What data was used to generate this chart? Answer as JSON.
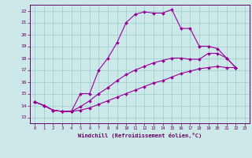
{
  "xlabel": "Windchill (Refroidissement éolien,°C)",
  "background_color": "#cce8e8",
  "grid_color": "#99cccc",
  "line_color": "#990099",
  "xlim": [
    -0.5,
    23.5
  ],
  "ylim": [
    12.5,
    22.5
  ],
  "xticks": [
    0,
    1,
    2,
    3,
    4,
    5,
    6,
    7,
    8,
    9,
    10,
    11,
    12,
    13,
    14,
    15,
    16,
    17,
    18,
    19,
    20,
    21,
    22,
    23
  ],
  "yticks": [
    13,
    14,
    15,
    16,
    17,
    18,
    19,
    20,
    21,
    22
  ],
  "curve1_x": [
    0,
    1,
    2,
    3,
    4,
    5,
    6,
    7,
    8,
    9,
    10,
    11,
    12,
    13,
    14,
    15,
    16,
    17,
    18,
    19,
    20,
    21,
    22
  ],
  "curve1_y": [
    14.3,
    14.0,
    13.6,
    13.5,
    13.5,
    15.0,
    15.0,
    17.0,
    18.0,
    19.3,
    21.0,
    21.7,
    21.9,
    21.8,
    21.8,
    22.1,
    20.5,
    20.5,
    19.0,
    19.0,
    18.8,
    18.0,
    17.2
  ],
  "curve2_x": [
    0,
    1,
    2,
    3,
    4,
    5,
    6,
    7,
    8,
    9,
    10,
    11,
    12,
    13,
    14,
    15,
    16,
    17,
    18,
    19,
    20,
    21,
    22
  ],
  "curve2_y": [
    14.3,
    14.0,
    13.6,
    13.5,
    13.5,
    13.6,
    13.8,
    14.1,
    14.4,
    14.7,
    15.0,
    15.3,
    15.6,
    15.9,
    16.1,
    16.4,
    16.7,
    16.9,
    17.1,
    17.2,
    17.3,
    17.2,
    17.2
  ],
  "curve3_x": [
    0,
    1,
    2,
    3,
    4,
    5,
    6,
    7,
    8,
    9,
    10,
    11,
    12,
    13,
    14,
    15,
    16,
    17,
    18,
    19,
    20,
    21,
    22
  ],
  "curve3_y": [
    14.3,
    14.0,
    13.6,
    13.5,
    13.5,
    13.9,
    14.4,
    15.0,
    15.5,
    16.1,
    16.6,
    17.0,
    17.3,
    17.6,
    17.8,
    18.0,
    18.0,
    17.9,
    17.9,
    18.4,
    18.4,
    18.0,
    17.2
  ],
  "figsize": [
    3.2,
    2.0
  ],
  "dpi": 100
}
